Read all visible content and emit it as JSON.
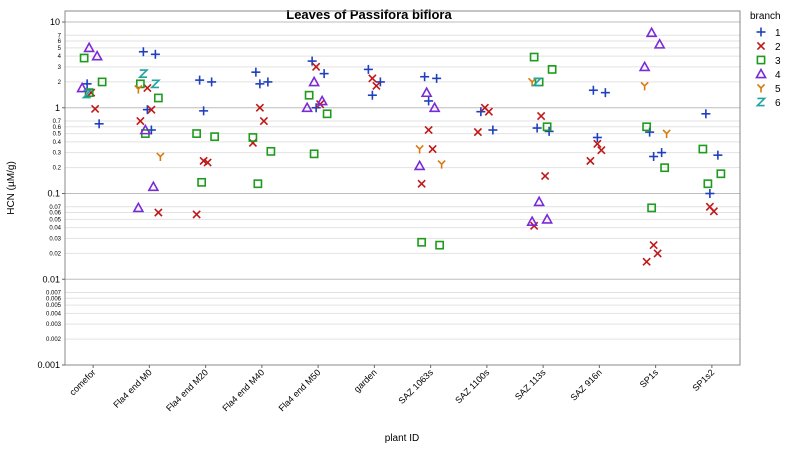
{
  "chart_data": {
    "type": "scatter",
    "title": "Leaves of Passifora biflora",
    "xlabel": "plant ID",
    "ylabel": "HCN (µM/g)",
    "yscale": "log",
    "ylim": [
      0.001,
      10
    ],
    "grid": "horizontal",
    "legend_position": "right",
    "legend_title": "branch",
    "y_major_ticks": [
      {
        "value": 10,
        "label": "10"
      },
      {
        "value": 1,
        "label": "1"
      },
      {
        "value": 0.1,
        "label": "0.1"
      },
      {
        "value": 0.01,
        "label": "0.01"
      },
      {
        "value": 0.001,
        "label": "0.001"
      }
    ],
    "y_minor_ticks": [
      {
        "value": 7,
        "label": "7"
      },
      {
        "value": 6,
        "label": "6"
      },
      {
        "value": 5,
        "label": "5"
      },
      {
        "value": 4,
        "label": "4"
      },
      {
        "value": 3,
        "label": "3"
      },
      {
        "value": 2,
        "label": "2"
      },
      {
        "value": 0.7,
        "label": "0.7"
      },
      {
        "value": 0.6,
        "label": "0.6"
      },
      {
        "value": 0.5,
        "label": "0.5"
      },
      {
        "value": 0.4,
        "label": "0.4"
      },
      {
        "value": 0.3,
        "label": "0.3"
      },
      {
        "value": 0.2,
        "label": "0.2"
      },
      {
        "value": 0.07,
        "label": "0.07"
      },
      {
        "value": 0.06,
        "label": "0.06"
      },
      {
        "value": 0.05,
        "label": "0.05"
      },
      {
        "value": 0.04,
        "label": "0.04"
      },
      {
        "value": 0.03,
        "label": "0.03"
      },
      {
        "value": 0.02,
        "label": "0.02"
      },
      {
        "value": 0.007,
        "label": "0.007"
      },
      {
        "value": 0.006,
        "label": "0.006"
      },
      {
        "value": 0.005,
        "label": "0.005"
      },
      {
        "value": 0.004,
        "label": "0.004"
      },
      {
        "value": 0.003,
        "label": "0.003"
      },
      {
        "value": 0.002,
        "label": "0.002"
      }
    ],
    "categories": [
      "comefor",
      "Fla4 end M0",
      "Fla4 end M20",
      "Fla4 end M40",
      "Fla4 end M50",
      "garden",
      "SAZ 1063s",
      "SAZ 1100s",
      "SAZ 113s",
      "SAZ 916n",
      "SP1s",
      "SP1s2"
    ],
    "series": [
      {
        "name": "1",
        "marker": "plus",
        "color": "#1f3fbf",
        "points": [
          {
            "cat": 0,
            "y": 1.9
          },
          {
            "cat": 0,
            "y": 0.65
          },
          {
            "cat": 1,
            "y": 4.5
          },
          {
            "cat": 1,
            "y": 4.2
          },
          {
            "cat": 1,
            "y": 0.95
          },
          {
            "cat": 1,
            "y": 0.55
          },
          {
            "cat": 2,
            "y": 2.1
          },
          {
            "cat": 2,
            "y": 2.0
          },
          {
            "cat": 2,
            "y": 0.92
          },
          {
            "cat": 3,
            "y": 2.6
          },
          {
            "cat": 3,
            "y": 2.0
          },
          {
            "cat": 3,
            "y": 1.9
          },
          {
            "cat": 4,
            "y": 3.5
          },
          {
            "cat": 4,
            "y": 2.5
          },
          {
            "cat": 4,
            "y": 1.0
          },
          {
            "cat": 5,
            "y": 2.8
          },
          {
            "cat": 5,
            "y": 2.0
          },
          {
            "cat": 5,
            "y": 1.4
          },
          {
            "cat": 6,
            "y": 2.3
          },
          {
            "cat": 6,
            "y": 2.2
          },
          {
            "cat": 6,
            "y": 1.2
          },
          {
            "cat": 7,
            "y": 0.9
          },
          {
            "cat": 7,
            "y": 0.55
          },
          {
            "cat": 8,
            "y": 0.58
          },
          {
            "cat": 8,
            "y": 0.53
          },
          {
            "cat": 9,
            "y": 1.6
          },
          {
            "cat": 9,
            "y": 1.5
          },
          {
            "cat": 9,
            "y": 0.45
          },
          {
            "cat": 10,
            "y": 0.52
          },
          {
            "cat": 10,
            "y": 0.3
          },
          {
            "cat": 10,
            "y": 0.27
          },
          {
            "cat": 11,
            "y": 0.85
          },
          {
            "cat": 11,
            "y": 0.28
          },
          {
            "cat": 11,
            "y": 0.1
          }
        ]
      },
      {
        "name": "2",
        "marker": "x",
        "color": "#c01818",
        "points": [
          {
            "cat": 0,
            "y": 1.5
          },
          {
            "cat": 0,
            "y": 0.97
          },
          {
            "cat": 1,
            "y": 1.7
          },
          {
            "cat": 1,
            "y": 0.95
          },
          {
            "cat": 1,
            "y": 0.7
          },
          {
            "cat": 1,
            "y": 0.06
          },
          {
            "cat": 2,
            "y": 0.24
          },
          {
            "cat": 2,
            "y": 0.23
          },
          {
            "cat": 2,
            "y": 0.057
          },
          {
            "cat": 3,
            "y": 1.0
          },
          {
            "cat": 3,
            "y": 0.7
          },
          {
            "cat": 3,
            "y": 0.39
          },
          {
            "cat": 4,
            "y": 3.0
          },
          {
            "cat": 4,
            "y": 1.1
          },
          {
            "cat": 5,
            "y": 2.2
          },
          {
            "cat": 5,
            "y": 1.8
          },
          {
            "cat": 6,
            "y": 0.55
          },
          {
            "cat": 6,
            "y": 0.33
          },
          {
            "cat": 6,
            "y": 0.13
          },
          {
            "cat": 7,
            "y": 1.0
          },
          {
            "cat": 7,
            "y": 0.9
          },
          {
            "cat": 7,
            "y": 0.52
          },
          {
            "cat": 8,
            "y": 0.8
          },
          {
            "cat": 8,
            "y": 0.16
          },
          {
            "cat": 8,
            "y": 0.042
          },
          {
            "cat": 9,
            "y": 0.38
          },
          {
            "cat": 9,
            "y": 0.32
          },
          {
            "cat": 9,
            "y": 0.24
          },
          {
            "cat": 10,
            "y": 0.025
          },
          {
            "cat": 10,
            "y": 0.02
          },
          {
            "cat": 10,
            "y": 0.016
          },
          {
            "cat": 11,
            "y": 0.07
          },
          {
            "cat": 11,
            "y": 0.062
          }
        ]
      },
      {
        "name": "3",
        "marker": "square",
        "color": "#1e9b1e",
        "points": [
          {
            "cat": 0,
            "y": 3.8
          },
          {
            "cat": 0,
            "y": 2.0
          },
          {
            "cat": 0,
            "y": 1.5
          },
          {
            "cat": 1,
            "y": 1.9
          },
          {
            "cat": 1,
            "y": 1.3
          },
          {
            "cat": 1,
            "y": 0.5
          },
          {
            "cat": 2,
            "y": 0.5
          },
          {
            "cat": 2,
            "y": 0.46
          },
          {
            "cat": 2,
            "y": 0.135
          },
          {
            "cat": 3,
            "y": 0.45
          },
          {
            "cat": 3,
            "y": 0.31
          },
          {
            "cat": 3,
            "y": 0.13
          },
          {
            "cat": 4,
            "y": 1.4
          },
          {
            "cat": 4,
            "y": 0.85
          },
          {
            "cat": 4,
            "y": 0.29
          },
          {
            "cat": 6,
            "y": 0.027
          },
          {
            "cat": 6,
            "y": 0.025
          },
          {
            "cat": 8,
            "y": 3.9
          },
          {
            "cat": 8,
            "y": 2.8
          },
          {
            "cat": 8,
            "y": 2.0
          },
          {
            "cat": 8,
            "y": 0.6
          },
          {
            "cat": 10,
            "y": 0.6
          },
          {
            "cat": 10,
            "y": 0.2
          },
          {
            "cat": 10,
            "y": 0.068
          },
          {
            "cat": 11,
            "y": 0.33
          },
          {
            "cat": 11,
            "y": 0.17
          },
          {
            "cat": 11,
            "y": 0.13
          }
        ]
      },
      {
        "name": "4",
        "marker": "triangle",
        "color": "#7a2ad6",
        "points": [
          {
            "cat": 0,
            "y": 5.0
          },
          {
            "cat": 0,
            "y": 4.0
          },
          {
            "cat": 0,
            "y": 1.7
          },
          {
            "cat": 1,
            "y": 0.55
          },
          {
            "cat": 1,
            "y": 0.12
          },
          {
            "cat": 1,
            "y": 0.068
          },
          {
            "cat": 4,
            "y": 2.0
          },
          {
            "cat": 4,
            "y": 1.2
          },
          {
            "cat": 4,
            "y": 1.0
          },
          {
            "cat": 6,
            "y": 1.5
          },
          {
            "cat": 6,
            "y": 1.0
          },
          {
            "cat": 6,
            "y": 0.21
          },
          {
            "cat": 8,
            "y": 0.08
          },
          {
            "cat": 8,
            "y": 0.05
          },
          {
            "cat": 8,
            "y": 0.047
          },
          {
            "cat": 10,
            "y": 7.5
          },
          {
            "cat": 10,
            "y": 5.5
          },
          {
            "cat": 10,
            "y": 3.0
          }
        ]
      },
      {
        "name": "5",
        "marker": "y",
        "color": "#d97a10",
        "points": [
          {
            "cat": 1,
            "y": 1.65
          },
          {
            "cat": 1,
            "y": 0.27
          },
          {
            "cat": 6,
            "y": 0.33
          },
          {
            "cat": 6,
            "y": 0.22
          },
          {
            "cat": 8,
            "y": 2.0
          },
          {
            "cat": 10,
            "y": 1.8
          },
          {
            "cat": 10,
            "y": 0.5
          }
        ]
      },
      {
        "name": "6",
        "marker": "z",
        "color": "#1fa3a3",
        "points": [
          {
            "cat": 0,
            "y": 1.45
          },
          {
            "cat": 1,
            "y": 2.5
          },
          {
            "cat": 1,
            "y": 1.9
          },
          {
            "cat": 8,
            "y": 2.0
          }
        ]
      }
    ]
  }
}
